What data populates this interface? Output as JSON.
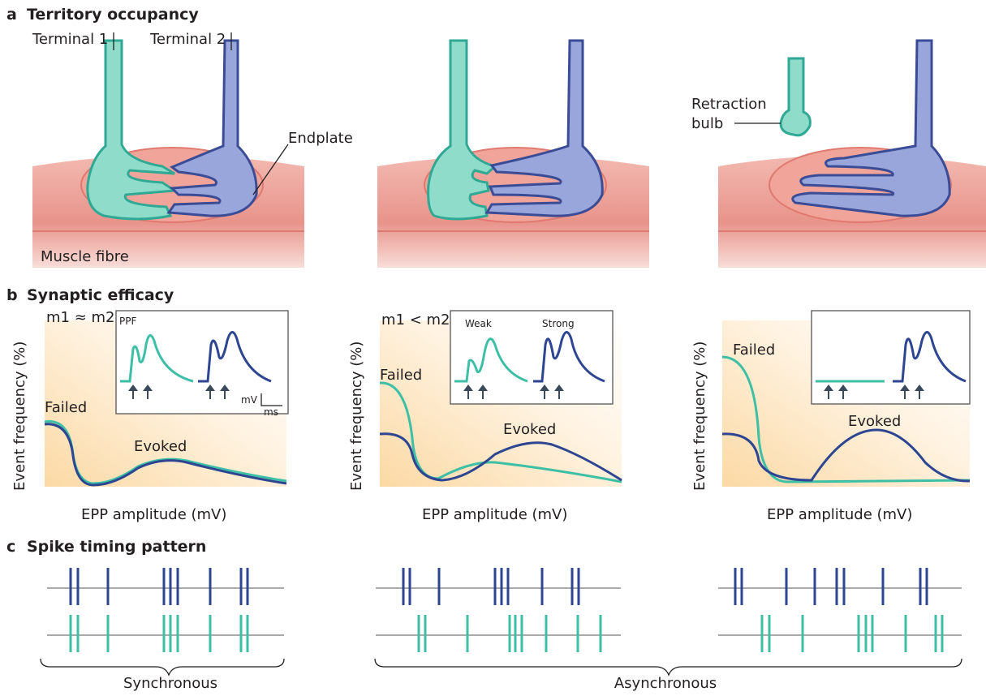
{
  "panel_a": {
    "letter": "a",
    "title": "Territory occupancy",
    "terminal_1": "Terminal 1",
    "terminal_2": "Terminal 2",
    "endplate": "Endplate",
    "muscle_fibre": "Muscle fibre",
    "retraction": "Retraction",
    "bulb": "bulb"
  },
  "panel_b": {
    "letter": "b",
    "title": "Synaptic efficacy",
    "y_label": "Event frequency (%)",
    "x_label": "EPP amplitude (mV)",
    "plots": [
      {
        "condition": "m1 ≈ m2",
        "failed": "Failed",
        "evoked": "Evoked",
        "inset_label": "PPF",
        "scale_y": "mV",
        "scale_x": "ms"
      },
      {
        "condition": "m1 < m2",
        "failed": "Failed",
        "evoked": "Evoked",
        "weak": "Weak",
        "strong": "Strong"
      },
      {
        "failed": "Failed",
        "evoked": "Evoked"
      }
    ]
  },
  "panel_c": {
    "letter": "c",
    "title": "Spike timing pattern",
    "synchronous": "Synchronous",
    "asynchronous": "Asynchronous"
  }
}
